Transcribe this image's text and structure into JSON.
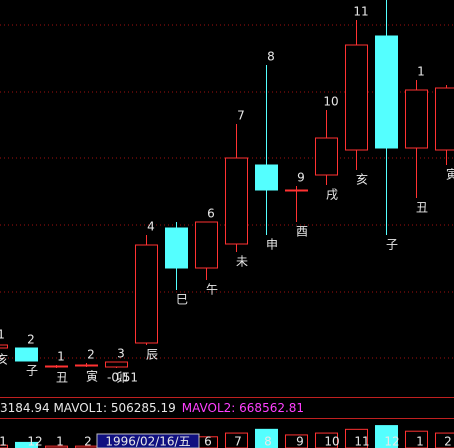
{
  "chart_data": {
    "type": "candlestick",
    "categories": [
      "亥",
      "子",
      "丑",
      "寅",
      "卯",
      "辰",
      "巳",
      "午",
      "未",
      "申",
      "酉",
      "戌",
      "亥",
      "子",
      "丑",
      "寅"
    ],
    "top_labels": [
      "1",
      "2",
      "1",
      "2",
      "3",
      "4",
      null,
      "6",
      "7",
      "8",
      "9",
      "10",
      "11",
      null,
      "1",
      null
    ],
    "open": [
      47,
      47,
      29,
      30,
      28,
      52,
      167,
      127,
      151,
      230,
      205,
      220,
      245,
      359,
      247,
      245
    ],
    "high": [
      52,
      47,
      30,
      32,
      33,
      160,
      173,
      173,
      271,
      330,
      209,
      285,
      375,
      395,
      315,
      310
    ],
    "low": [
      45,
      34,
      27,
      28,
      27,
      50,
      105,
      115,
      143,
      160,
      173,
      210,
      225,
      160,
      197,
      230
    ],
    "close": [
      50,
      34,
      29,
      30,
      33,
      150,
      127,
      173,
      237,
      205,
      205,
      257,
      350,
      247,
      305,
      307
    ],
    "ylim": [
      0,
      395
    ],
    "up_color": "#ff3232",
    "down_color": "#54ffff",
    "annotation": "-0.51",
    "indicator_texts": [
      {
        "text": "3184.94 MAVOL1: 506285.19",
        "color": "#e8e8e8"
      },
      {
        "text": "MAVOL2: 668562.81",
        "color": "#ff40ff"
      }
    ],
    "volume": [
      150000,
      300000,
      100000,
      100000,
      150000,
      400000,
      500000,
      600000,
      800000,
      1000000,
      700000,
      800000,
      1000000,
      1200000,
      900000,
      800000
    ],
    "volume_ylim": [
      0,
      1500000
    ],
    "x_axis_labels": [
      "1",
      "12",
      "1",
      "2",
      "1996/02/16/五",
      "6",
      "7",
      "8",
      "9",
      "10",
      "11",
      "12",
      "1",
      "2"
    ],
    "highlighted_label": 4
  }
}
